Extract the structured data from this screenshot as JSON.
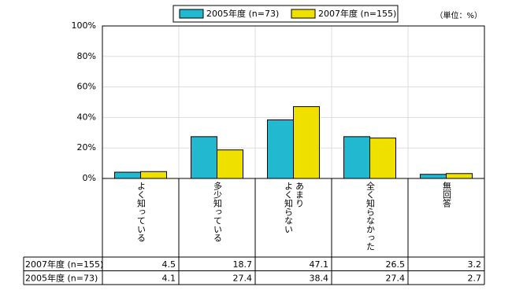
{
  "chart_data": {
    "type": "bar",
    "unit_note": "（単位：%）",
    "categories": [
      "よく知っている",
      "多少知っている",
      "あまり\nよく知らない",
      "全く知らなかった",
      "無回答"
    ],
    "series": [
      {
        "name": "2005年度 (n=73)",
        "color": "#22b8d0",
        "values": [
          4.1,
          27.4,
          38.4,
          27.4,
          2.7
        ]
      },
      {
        "name": "2007年度 (n=155)",
        "color": "#f0e000",
        "values": [
          4.5,
          18.7,
          47.1,
          26.5,
          3.2
        ]
      }
    ],
    "ylim": [
      0,
      100
    ],
    "yticks": [
      {
        "value": 0,
        "label": "0%"
      },
      {
        "value": 20,
        "label": "20%"
      },
      {
        "value": 40,
        "label": "40%"
      },
      {
        "value": 60,
        "label": "60%"
      },
      {
        "value": 80,
        "label": "80%"
      },
      {
        "value": 100,
        "label": "100%"
      }
    ],
    "grid": true,
    "table_row_order": [
      1,
      0
    ]
  }
}
